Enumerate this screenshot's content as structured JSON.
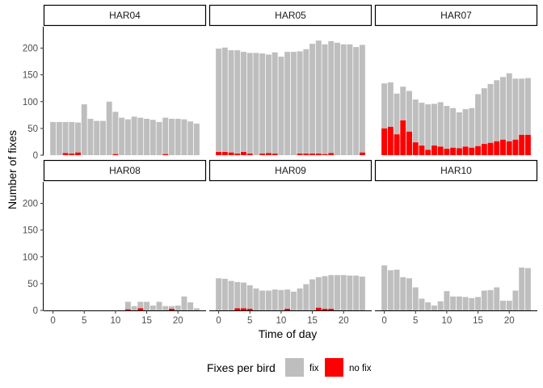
{
  "chart_data": {
    "type": "bar",
    "stacked": true,
    "xlabel": "Time of day",
    "ylabel": "Number of fixes",
    "ylim": [
      0,
      240
    ],
    "y_ticks": [
      0,
      50,
      100,
      150,
      200
    ],
    "x_ticks": [
      0,
      5,
      10,
      15,
      20
    ],
    "xlim": [
      -1.5,
      24.5
    ],
    "grid": false,
    "facet_layout": {
      "rows": 2,
      "cols": 3
    },
    "legend": {
      "title": "Fixes per bird",
      "position": "bottom",
      "items": [
        {
          "label": "fix",
          "color": "#bebebe"
        },
        {
          "label": "no fix",
          "color": "#ff0000"
        }
      ]
    },
    "hours": [
      0,
      1,
      2,
      3,
      4,
      5,
      6,
      7,
      8,
      9,
      10,
      11,
      12,
      13,
      14,
      15,
      16,
      17,
      18,
      19,
      20,
      21,
      22,
      23
    ],
    "facets": [
      {
        "name": "HAR04",
        "total": [
          62,
          62,
          62,
          62,
          61,
          95,
          68,
          64,
          64,
          100,
          81,
          70,
          67,
          72,
          70,
          68,
          66,
          62,
          70,
          68,
          68,
          67,
          63,
          59
        ],
        "no_fix": [
          0,
          0,
          4,
          3,
          5,
          0,
          0,
          0,
          0,
          0,
          2,
          0,
          0,
          0,
          0,
          0,
          0,
          0,
          2,
          0,
          0,
          0,
          0,
          0
        ]
      },
      {
        "name": "HAR05",
        "total": [
          199,
          201,
          196,
          196,
          193,
          191,
          191,
          190,
          188,
          192,
          184,
          193,
          193,
          194,
          198,
          208,
          214,
          207,
          213,
          210,
          207,
          207,
          202,
          206
        ],
        "no_fix": [
          6,
          6,
          5,
          3,
          6,
          3,
          0,
          3,
          4,
          3,
          0,
          0,
          0,
          3,
          3,
          3,
          3,
          2,
          4,
          0,
          0,
          0,
          0,
          5
        ]
      },
      {
        "name": "HAR07",
        "total": [
          134,
          136,
          115,
          128,
          120,
          104,
          98,
          95,
          96,
          99,
          92,
          88,
          80,
          86,
          88,
          114,
          125,
          133,
          140,
          146,
          153,
          143,
          143,
          144
        ],
        "no_fix": [
          50,
          53,
          39,
          65,
          44,
          24,
          18,
          10,
          18,
          16,
          12,
          14,
          13,
          16,
          14,
          17,
          21,
          23,
          26,
          29,
          26,
          29,
          38,
          38
        ]
      },
      {
        "name": "HAR08",
        "total": [
          0,
          0,
          0,
          0,
          0,
          0,
          0,
          0,
          0,
          0,
          0,
          0,
          16,
          8,
          16,
          16,
          9,
          16,
          8,
          8,
          9,
          26,
          15,
          4
        ],
        "no_fix": [
          0,
          0,
          0,
          0,
          0,
          0,
          0,
          0,
          0,
          0,
          0,
          0,
          2,
          0,
          4,
          0,
          0,
          0,
          0,
          3,
          0,
          0,
          0,
          0
        ]
      },
      {
        "name": "HAR09",
        "total": [
          60,
          59,
          55,
          53,
          52,
          47,
          41,
          37,
          37,
          39,
          38,
          39,
          35,
          41,
          49,
          58,
          62,
          64,
          66,
          66,
          66,
          65,
          65,
          63
        ],
        "no_fix": [
          0,
          0,
          0,
          4,
          4,
          3,
          0,
          0,
          0,
          0,
          0,
          3,
          0,
          0,
          0,
          0,
          5,
          3,
          3,
          0,
          0,
          0,
          0,
          0
        ]
      },
      {
        "name": "HAR10",
        "total": [
          84,
          75,
          76,
          62,
          60,
          43,
          22,
          15,
          9,
          17,
          36,
          26,
          26,
          25,
          23,
          25,
          37,
          38,
          43,
          18,
          18,
          37,
          80,
          79
        ],
        "no_fix": [
          0,
          0,
          0,
          0,
          0,
          0,
          0,
          0,
          0,
          0,
          0,
          0,
          0,
          0,
          0,
          0,
          0,
          0,
          0,
          0,
          0,
          0,
          0,
          0
        ]
      }
    ]
  }
}
